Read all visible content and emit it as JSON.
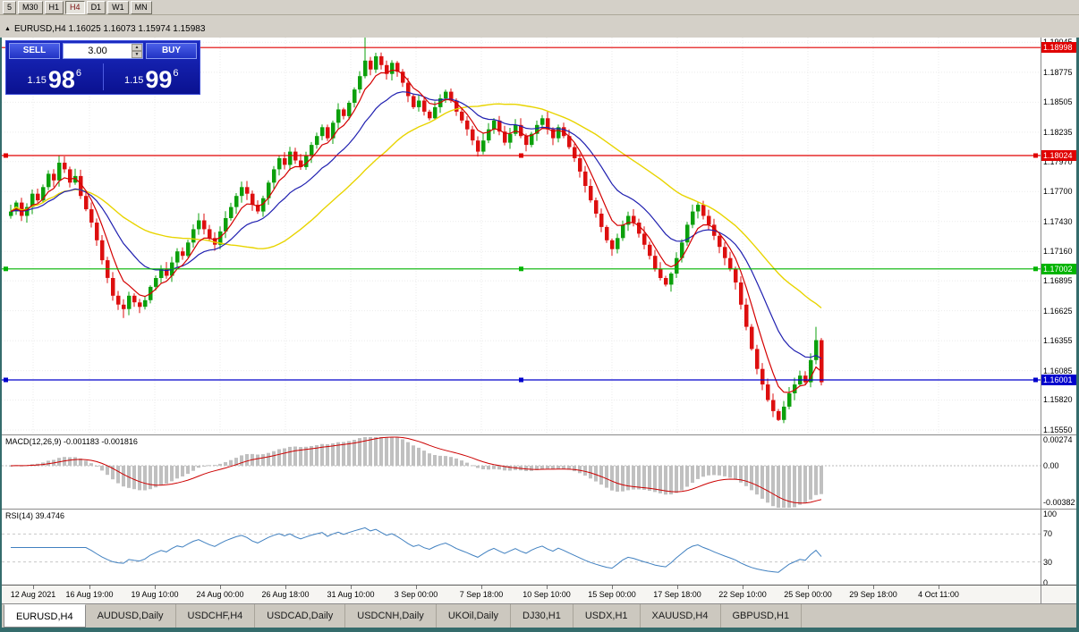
{
  "toolbar": {
    "timeframes": [
      "5",
      "M30",
      "H1",
      "H4",
      "D1",
      "W1",
      "MN"
    ],
    "active_timeframe": "H4"
  },
  "title_bar": {
    "text": "EURUSD,H4 1.16025 1.16073 1.15974 1.15983"
  },
  "icons": {
    "collapse": "▲",
    "spin_up": "▲",
    "spin_down": "▼"
  },
  "trade_panel": {
    "sell_label": "SELL",
    "buy_label": "BUY",
    "volume": "3.00",
    "sell_price": {
      "prefix": "1.15",
      "big": "98",
      "sup": "6"
    },
    "buy_price": {
      "prefix": "1.15",
      "big": "99",
      "sup": "6"
    }
  },
  "indicators": {
    "macd_label": "MACD(12,26,9) -0.001183 -0.001816",
    "macd_scale": [
      "0.00274",
      "0.00",
      "-0.00382"
    ],
    "rsi_label": "RSI(14) 39.4746",
    "rsi_scale": [
      "100",
      "70",
      "30",
      "0"
    ]
  },
  "tabs": [
    "EURUSD,H4",
    "AUDUSD,Daily",
    "USDCHF,H4",
    "USDCAD,Daily",
    "USDCNH,Daily",
    "UKOil,Daily",
    "DJ30,H1",
    "USDX,H1",
    "XAUUSD,H4",
    "GBPUSD,H1"
  ],
  "chart_data": {
    "type": "candlestick",
    "symbol": "EURUSD",
    "timeframe": "H4",
    "ohlc_current": {
      "open": "1.16025",
      "high": "1.16073",
      "low": "1.15974",
      "close": "1.15983"
    },
    "price_axis": [
      "1.19045",
      "1.18775",
      "1.18505",
      "1.18235",
      "1.17970",
      "1.17700",
      "1.17430",
      "1.17160",
      "1.16895",
      "1.16625",
      "1.16355",
      "1.16085",
      "1.15820",
      "1.15550"
    ],
    "time_axis": [
      "12 Aug 2021",
      "16 Aug 19:00",
      "19 Aug 10:00",
      "24 Aug 00:00",
      "26 Aug 18:00",
      "31 Aug 10:00",
      "3 Sep 00:00",
      "7 Sep 18:00",
      "10 Sep 10:00",
      "15 Sep 00:00",
      "17 Sep 18:00",
      "22 Sep 10:00",
      "25 Sep 00:00",
      "29 Sep 18:00",
      "4 Oct 11:00"
    ],
    "hlines": [
      {
        "label": "1.18998",
        "price": 1.18998,
        "color": "#e00000",
        "handles": false
      },
      {
        "label": "1.18024",
        "price": 1.18024,
        "color": "#e00000",
        "handles": true
      },
      {
        "label": "1.17002",
        "price": 1.17002,
        "color": "#00b400",
        "handles": true
      },
      {
        "label": "1.16001",
        "price": 1.16001,
        "color": "#0000cc",
        "handles": true
      }
    ],
    "moving_averages": [
      {
        "name": "fast",
        "color": "#d40000",
        "type": "ema",
        "period": 6
      },
      {
        "name": "medium",
        "color": "#2020b0",
        "type": "ema",
        "period": 16
      },
      {
        "name": "slow",
        "color": "#e8d400",
        "type": "sma",
        "period": 34
      }
    ],
    "macd_params": {
      "fast": 12,
      "slow": 26,
      "signal": 9
    },
    "rsi_params": {
      "period": 14
    },
    "candles": {
      "closes": [
        1.1752,
        1.176,
        1.1748,
        1.1756,
        1.1768,
        1.1762,
        1.1774,
        1.1786,
        1.178,
        1.1796,
        1.179,
        1.1778,
        1.1784,
        1.1766,
        1.1754,
        1.1742,
        1.1726,
        1.1708,
        1.1692,
        1.1676,
        1.1668,
        1.1664,
        1.1676,
        1.167,
        1.1666,
        1.1672,
        1.1684,
        1.1692,
        1.17,
        1.1694,
        1.1706,
        1.1716,
        1.1712,
        1.1724,
        1.1736,
        1.1744,
        1.1736,
        1.1728,
        1.1722,
        1.1734,
        1.1746,
        1.1756,
        1.1766,
        1.1774,
        1.1768,
        1.1758,
        1.1752,
        1.1764,
        1.1778,
        1.179,
        1.18,
        1.1794,
        1.1806,
        1.1798,
        1.1792,
        1.1802,
        1.1812,
        1.182,
        1.1828,
        1.1818,
        1.1832,
        1.1844,
        1.1838,
        1.185,
        1.1862,
        1.1874,
        1.1888,
        1.188,
        1.1892,
        1.1884,
        1.1876,
        1.1886,
        1.1878,
        1.1868,
        1.1856,
        1.1846,
        1.1852,
        1.1842,
        1.1836,
        1.1846,
        1.1854,
        1.186,
        1.1852,
        1.1842,
        1.1834,
        1.1826,
        1.1816,
        1.1806,
        1.1816,
        1.1826,
        1.1834,
        1.1824,
        1.1814,
        1.1822,
        1.183,
        1.182,
        1.1812,
        1.1822,
        1.183,
        1.1836,
        1.1826,
        1.1818,
        1.1828,
        1.182,
        1.181,
        1.18,
        1.1788,
        1.1775,
        1.1762,
        1.175,
        1.1738,
        1.1726,
        1.1718,
        1.1728,
        1.174,
        1.1748,
        1.1742,
        1.1732,
        1.1722,
        1.1712,
        1.17,
        1.1692,
        1.1686,
        1.1696,
        1.171,
        1.1724,
        1.174,
        1.1752,
        1.1758,
        1.1748,
        1.174,
        1.173,
        1.172,
        1.171,
        1.17,
        1.1688,
        1.1668,
        1.1648,
        1.1628,
        1.161,
        1.1596,
        1.1582,
        1.1572,
        1.1564,
        1.1576,
        1.1588,
        1.1596,
        1.1604,
        1.1598,
        1.1618,
        1.1636,
        1.1598
      ],
      "wick_overrides": [
        {
          "index": 21,
          "low": 1.1656
        },
        {
          "index": 66,
          "high": 1.1909
        },
        {
          "index": 143,
          "low": 1.1563
        },
        {
          "index": 150,
          "high": 1.1648
        }
      ]
    },
    "colors": {
      "bull": "#0ca00c",
      "bear": "#dd0f0f",
      "macd_hist": "#c0c0c0",
      "macd_signal": "#cc0000",
      "rsi_line": "#4080c0"
    }
  }
}
